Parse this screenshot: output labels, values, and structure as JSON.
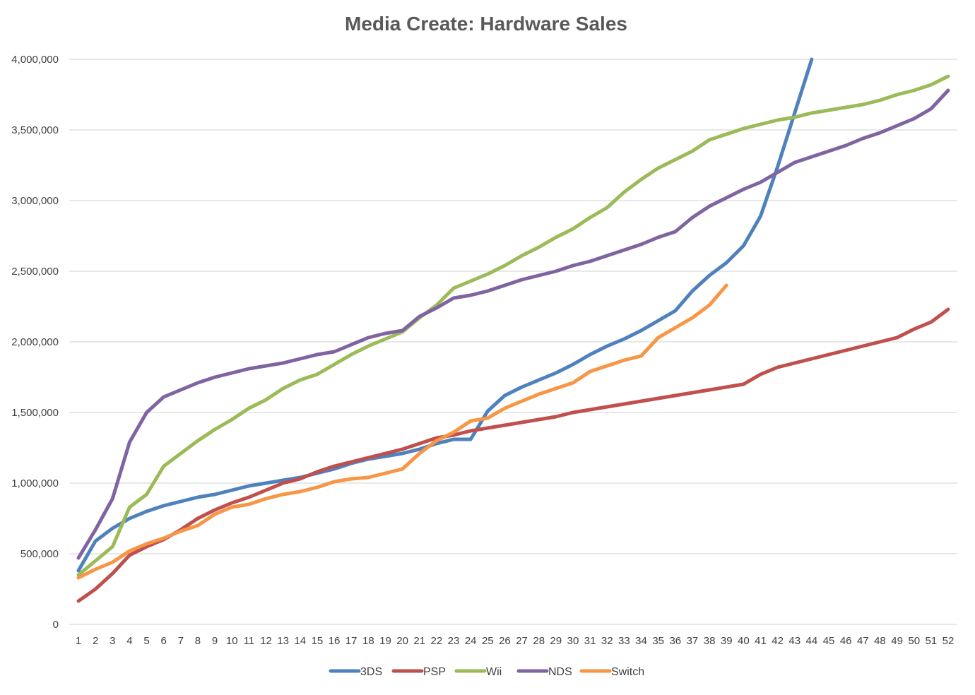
{
  "chart_data": {
    "type": "line",
    "title": "Media Create: Hardware Sales",
    "xlabel": "",
    "ylabel": "",
    "ylim": [
      0,
      4000000
    ],
    "yticks": [
      0,
      500000,
      1000000,
      1500000,
      2000000,
      2500000,
      3000000,
      3500000,
      4000000
    ],
    "ytick_labels": [
      "0",
      "500,000",
      "1,000,000",
      "1,500,000",
      "2,000,000",
      "2,500,000",
      "3,000,000",
      "3,500,000",
      "4,000,000"
    ],
    "x": [
      1,
      2,
      3,
      4,
      5,
      6,
      7,
      8,
      9,
      10,
      11,
      12,
      13,
      14,
      15,
      16,
      17,
      18,
      19,
      20,
      21,
      22,
      23,
      24,
      25,
      26,
      27,
      28,
      29,
      30,
      31,
      32,
      33,
      34,
      35,
      36,
      37,
      38,
      39,
      40,
      41,
      42,
      43,
      44,
      45,
      46,
      47,
      48,
      49,
      50,
      51,
      52
    ],
    "grid": true,
    "legend_position": "bottom",
    "series": [
      {
        "name": "3DS",
        "color": "#4f81bd",
        "values": [
          380000,
          590000,
          680000,
          750000,
          800000,
          840000,
          870000,
          900000,
          920000,
          950000,
          980000,
          1000000,
          1020000,
          1040000,
          1070000,
          1100000,
          1140000,
          1170000,
          1190000,
          1210000,
          1240000,
          1280000,
          1310000,
          1310000,
          1510000,
          1620000,
          1680000,
          1730000,
          1780000,
          1840000,
          1910000,
          1970000,
          2020000,
          2080000,
          2150000,
          2220000,
          2360000,
          2470000,
          2560000,
          2680000,
          2890000,
          3240000,
          3620000,
          4000000,
          null,
          null,
          null,
          null,
          null,
          null,
          null,
          null
        ]
      },
      {
        "name": "PSP",
        "color": "#c0504d",
        "values": [
          165000,
          250000,
          360000,
          490000,
          550000,
          600000,
          670000,
          750000,
          810000,
          860000,
          900000,
          950000,
          1000000,
          1030000,
          1080000,
          1120000,
          1150000,
          1180000,
          1210000,
          1240000,
          1280000,
          1320000,
          1340000,
          1370000,
          1390000,
          1410000,
          1430000,
          1450000,
          1470000,
          1500000,
          1520000,
          1540000,
          1560000,
          1580000,
          1600000,
          1620000,
          1640000,
          1660000,
          1680000,
          1700000,
          1770000,
          1820000,
          1850000,
          1880000,
          1910000,
          1940000,
          1970000,
          2000000,
          2030000,
          2090000,
          2140000,
          2230000
        ]
      },
      {
        "name": "Wii",
        "color": "#9bbb59",
        "values": [
          350000,
          450000,
          550000,
          830000,
          920000,
          1120000,
          1210000,
          1300000,
          1380000,
          1450000,
          1530000,
          1590000,
          1670000,
          1730000,
          1770000,
          1840000,
          1910000,
          1970000,
          2020000,
          2070000,
          2170000,
          2260000,
          2380000,
          2430000,
          2480000,
          2540000,
          2610000,
          2670000,
          2740000,
          2800000,
          2880000,
          2950000,
          3060000,
          3150000,
          3230000,
          3290000,
          3350000,
          3430000,
          3470000,
          3510000,
          3540000,
          3570000,
          3590000,
          3620000,
          3640000,
          3660000,
          3680000,
          3710000,
          3750000,
          3780000,
          3820000,
          3880000
        ]
      },
      {
        "name": "NDS",
        "color": "#8064a2",
        "values": [
          470000,
          670000,
          890000,
          1290000,
          1500000,
          1610000,
          1660000,
          1710000,
          1750000,
          1780000,
          1810000,
          1830000,
          1850000,
          1880000,
          1910000,
          1930000,
          1980000,
          2030000,
          2060000,
          2080000,
          2180000,
          2240000,
          2310000,
          2330000,
          2360000,
          2400000,
          2440000,
          2470000,
          2500000,
          2540000,
          2570000,
          2610000,
          2650000,
          2690000,
          2740000,
          2780000,
          2880000,
          2960000,
          3020000,
          3080000,
          3130000,
          3200000,
          3270000,
          3310000,
          3350000,
          3390000,
          3440000,
          3480000,
          3530000,
          3580000,
          3650000,
          3780000
        ]
      },
      {
        "name": "Switch",
        "color": "#f79646",
        "values": [
          330000,
          390000,
          440000,
          520000,
          570000,
          610000,
          660000,
          700000,
          780000,
          830000,
          850000,
          890000,
          920000,
          940000,
          970000,
          1010000,
          1030000,
          1040000,
          1070000,
          1100000,
          1210000,
          1300000,
          1360000,
          1440000,
          1460000,
          1530000,
          1580000,
          1630000,
          1670000,
          1710000,
          1790000,
          1830000,
          1870000,
          1900000,
          2030000,
          2100000,
          2170000,
          2260000,
          2400000,
          null,
          null,
          null,
          null,
          null,
          null,
          null,
          null,
          null,
          null,
          null,
          null,
          null
        ]
      }
    ]
  }
}
